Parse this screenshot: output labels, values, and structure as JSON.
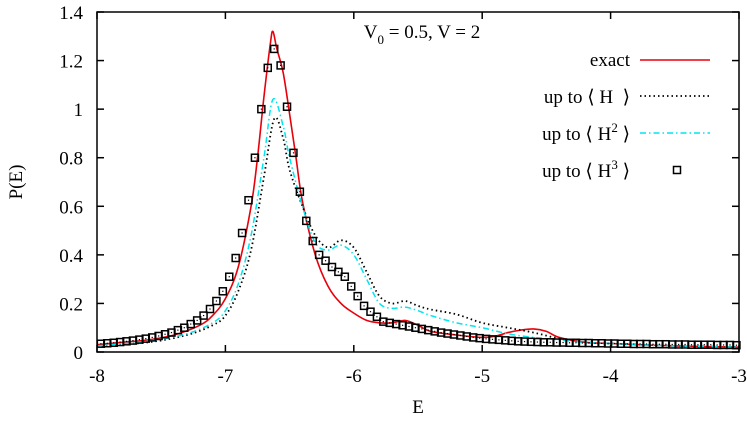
{
  "chart_data": {
    "type": "line",
    "title": "V0 = 0.5, V = 2",
    "title_parts": {
      "v0_main": "V",
      "v0_sub": "0",
      "rest": " = 0.5, V = 2"
    },
    "xlabel": "E",
    "ylabel": "P(E)",
    "xlim": [
      -8,
      -3
    ],
    "ylim": [
      0,
      1.4
    ],
    "xticks": [
      "-8",
      "-7",
      "-6",
      "-5",
      "-4",
      "-3"
    ],
    "yticks": [
      "0",
      "0.2",
      "0.4",
      "0.6",
      "0.8",
      "1",
      "1.2",
      "1.4"
    ],
    "grid": false,
    "legend_placement": "top-right",
    "series": [
      {
        "name": "exact",
        "style": "solid",
        "color": "#e8000b",
        "x": [
          -8,
          -7.8,
          -7.6,
          -7.4,
          -7.2,
          -7.1,
          -7.0,
          -6.9,
          -6.8,
          -6.75,
          -6.7,
          -6.65,
          -6.63,
          -6.6,
          -6.55,
          -6.5,
          -6.45,
          -6.4,
          -6.3,
          -6.2,
          -6.1,
          -6.0,
          -5.9,
          -5.8,
          -5.7,
          -5.6,
          -5.5,
          -5.4,
          -5.2,
          -5.0,
          -4.9,
          -4.8,
          -4.7,
          -4.6,
          -4.5,
          -4.4,
          -4.2,
          -4.0,
          -3.5,
          -3.0
        ],
        "y": [
          0.03,
          0.04,
          0.05,
          0.07,
          0.11,
          0.15,
          0.22,
          0.35,
          0.6,
          0.8,
          1.05,
          1.27,
          1.32,
          1.25,
          1.15,
          0.98,
          0.8,
          0.62,
          0.4,
          0.27,
          0.2,
          0.16,
          0.13,
          0.12,
          0.12,
          0.13,
          0.11,
          0.085,
          0.07,
          0.06,
          0.065,
          0.08,
          0.09,
          0.095,
          0.085,
          0.06,
          0.04,
          0.035,
          0.025,
          0.02
        ]
      },
      {
        "name": "up to ⟨ H ⟩",
        "label_main": "up to ⟨ H  ⟩",
        "style": "dotted",
        "color": "#000000",
        "x": [
          -8,
          -7.6,
          -7.3,
          -7.1,
          -7.0,
          -6.9,
          -6.8,
          -6.7,
          -6.62,
          -6.55,
          -6.5,
          -6.4,
          -6.3,
          -6.2,
          -6.1,
          -6.0,
          -5.9,
          -5.8,
          -5.7,
          -5.6,
          -5.5,
          -5.4,
          -5.2,
          -5.0,
          -4.8,
          -4.6,
          -4.4,
          -4.2,
          -4.0,
          -3.5,
          -3.0
        ],
        "y": [
          0.025,
          0.04,
          0.07,
          0.11,
          0.15,
          0.25,
          0.42,
          0.72,
          0.96,
          0.88,
          0.75,
          0.6,
          0.48,
          0.43,
          0.46,
          0.43,
          0.33,
          0.23,
          0.2,
          0.21,
          0.19,
          0.175,
          0.155,
          0.12,
          0.1,
          0.08,
          0.055,
          0.04,
          0.035,
          0.025,
          0.02
        ]
      },
      {
        "name": "up to ⟨ H² ⟩",
        "label_main": "up to ⟨ H",
        "label_sup": "2",
        "label_end": " ⟩",
        "style": "dash-dot",
        "color": "#00e5ee",
        "x": [
          -8,
          -7.6,
          -7.3,
          -7.1,
          -7.0,
          -6.9,
          -6.8,
          -6.7,
          -6.63,
          -6.55,
          -6.5,
          -6.4,
          -6.3,
          -6.2,
          -6.1,
          -6.0,
          -5.9,
          -5.8,
          -5.7,
          -5.6,
          -5.5,
          -5.4,
          -5.2,
          -5.0,
          -4.8,
          -4.6,
          -4.4,
          -4.2,
          -4.0,
          -3.5,
          -3.0
        ],
        "y": [
          0.025,
          0.045,
          0.075,
          0.12,
          0.17,
          0.28,
          0.48,
          0.8,
          1.04,
          0.93,
          0.8,
          0.6,
          0.45,
          0.42,
          0.44,
          0.4,
          0.3,
          0.2,
          0.18,
          0.185,
          0.17,
          0.15,
          0.12,
          0.1,
          0.075,
          0.06,
          0.05,
          0.04,
          0.035,
          0.025,
          0.02
        ]
      },
      {
        "name": "up to ⟨ H³ ⟩",
        "label_main": "up to ⟨ H",
        "label_sup": "3",
        "label_end": " ⟩",
        "style": "square-markers",
        "color": "#000000",
        "x": [
          -7.97,
          -7.92,
          -7.87,
          -7.82,
          -7.77,
          -7.72,
          -7.67,
          -7.62,
          -7.57,
          -7.52,
          -7.47,
          -7.42,
          -7.37,
          -7.32,
          -7.27,
          -7.22,
          -7.17,
          -7.12,
          -7.07,
          -7.02,
          -6.97,
          -6.92,
          -6.87,
          -6.82,
          -6.77,
          -6.72,
          -6.67,
          -6.62,
          -6.57,
          -6.52,
          -6.47,
          -6.42,
          -6.37,
          -6.32,
          -6.27,
          -6.22,
          -6.17,
          -6.12,
          -6.07,
          -6.02,
          -5.97,
          -5.92,
          -5.87,
          -5.82,
          -5.77,
          -5.72,
          -5.67,
          -5.62,
          -5.57,
          -5.52,
          -5.47,
          -5.42,
          -5.37,
          -5.32,
          -5.27,
          -5.22,
          -5.17,
          -5.12,
          -5.07,
          -5.02,
          -4.97,
          -4.92,
          -4.87,
          -4.82,
          -4.77,
          -4.72,
          -4.67,
          -4.62,
          -4.57,
          -4.52,
          -4.47,
          -4.42,
          -4.37,
          -4.32,
          -4.27,
          -4.22,
          -4.17,
          -4.12,
          -4.07,
          -4.02,
          -3.97,
          -3.92,
          -3.87,
          -3.82,
          -3.77,
          -3.72,
          -3.67,
          -3.62,
          -3.57,
          -3.52,
          -3.47,
          -3.42,
          -3.37,
          -3.32,
          -3.27,
          -3.22,
          -3.17,
          -3.12,
          -3.07,
          -3.02
        ],
        "y": [
          0.034,
          0.036,
          0.038,
          0.041,
          0.044,
          0.047,
          0.051,
          0.055,
          0.06,
          0.066,
          0.073,
          0.08,
          0.09,
          0.1,
          0.115,
          0.13,
          0.15,
          0.177,
          0.21,
          0.25,
          0.31,
          0.387,
          0.49,
          0.625,
          0.8,
          1.0,
          1.17,
          1.248,
          1.18,
          1.01,
          0.82,
          0.66,
          0.54,
          0.457,
          0.4,
          0.376,
          0.35,
          0.33,
          0.31,
          0.27,
          0.23,
          0.19,
          0.166,
          0.145,
          0.125,
          0.12,
          0.115,
          0.11,
          0.105,
          0.1,
          0.095,
          0.09,
          0.085,
          0.08,
          0.076,
          0.072,
          0.068,
          0.064,
          0.06,
          0.057,
          0.054,
          0.052,
          0.05,
          0.048,
          0.046,
          0.044,
          0.043,
          0.042,
          0.041,
          0.04,
          0.04,
          0.039,
          0.039,
          0.038,
          0.038,
          0.037,
          0.037,
          0.036,
          0.036,
          0.035,
          0.035,
          0.034,
          0.034,
          0.033,
          0.033,
          0.033,
          0.032,
          0.032,
          0.032,
          0.031,
          0.031,
          0.031,
          0.03,
          0.03,
          0.03,
          0.03,
          0.029,
          0.029,
          0.029,
          0.028
        ]
      }
    ]
  }
}
